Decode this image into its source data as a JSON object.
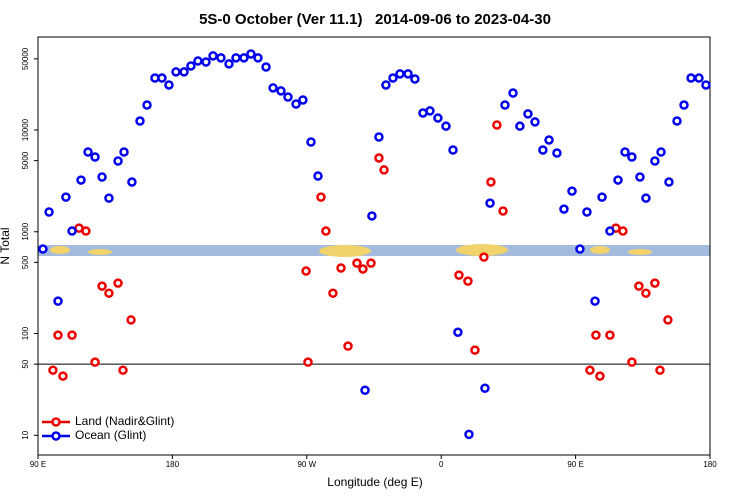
{
  "chart_data": {
    "type": "scatter",
    "title": "5S-0 October (Ver 11.1)   2014-09-06 to 2023-04-30",
    "x_label": "Longitude (deg E)",
    "y_label": "N Total",
    "xlim": [
      90,
      540
    ],
    "ylim": [
      6.4,
      82000
    ],
    "ylog": true,
    "grid": false,
    "legend": "bottom left",
    "reference_line": 50,
    "xticks": [
      {
        "value": 90,
        "label": "90 E"
      },
      180,
      {
        "value": 270,
        "label": "90 W"
      },
      {
        "value": 360,
        "label": "0"
      },
      {
        "value": 450,
        "label": "90 E"
      },
      {
        "value": 540,
        "label": "180"
      }
    ],
    "yticks": [
      10,
      50,
      100,
      500,
      1000,
      5000,
      10000,
      50000
    ],
    "series": [
      {
        "name": "Land (Nadir&Glint)",
        "color": "#ee0000",
        "x": [
          100.0,
          106.7,
          103.4,
          112.8,
          117.5,
          122.1,
          128.2,
          132.9,
          137.5,
          143.6,
          146.9,
          152.3,
          269.5,
          270.8,
          279.5,
          282.8,
          287.5,
          292.9,
          297.6,
          303.6,
          307.6,
          313.0,
          318.3,
          321.7,
          371.9,
          377.9,
          382.6,
          388.6,
          393.3,
          397.3,
          401.4,
          459.6,
          463.6,
          466.3,
          473.0,
          477.0,
          481.7,
          487.7,
          492.4,
          497.1,
          503.1,
          506.5,
          511.8
        ],
        "values": [
          43.6,
          38.1,
          96.4,
          96.4,
          1086,
          1016,
          52.3,
          292,
          249,
          313,
          43.6,
          136,
          411,
          52.3,
          2190,
          1016,
          249,
          440,
          75.2,
          492,
          430,
          492,
          5310,
          4050,
          375,
          327,
          68.7,
          564,
          3080,
          11200,
          1600,
          43.6,
          96.4,
          38.1,
          96.4,
          1086,
          1016,
          52.3,
          292,
          249,
          313,
          43.6,
          136
        ]
      },
      {
        "name": "Ocean (Glint)",
        "color": "#0000ee",
        "x": [
          93.3,
          97.4,
          103.4,
          108.7,
          112.8,
          118.8,
          123.5,
          128.2,
          132.9,
          137.5,
          143.6,
          147.6,
          152.9,
          158.3,
          163.0,
          168.3,
          173.0,
          177.7,
          182.4,
          187.8,
          192.4,
          197.1,
          202.5,
          207.2,
          212.5,
          217.9,
          222.6,
          227.9,
          232.6,
          237.3,
          242.7,
          247.4,
          252.7,
          257.4,
          262.8,
          267.4,
          272.8,
          277.5,
          309.0,
          313.6,
          318.3,
          323.0,
          327.7,
          332.4,
          337.8,
          342.4,
          347.8,
          352.5,
          357.8,
          363.2,
          367.9,
          371.2,
          378.6,
          389.3,
          392.7,
          402.7,
          408.1,
          412.7,
          418.1,
          422.8,
          428.1,
          432.2,
          437.5,
          442.2,
          447.6,
          452.9,
          457.6,
          463.0,
          467.7,
          473.0,
          478.4,
          483.1,
          487.7,
          493.1,
          497.1,
          503.1,
          507.2,
          512.5,
          517.9,
          522.6,
          527.3,
          532.6,
          537.3
        ],
        "values": [
          676,
          1563,
          208,
          2190,
          1016,
          3220,
          6080,
          5430,
          3450,
          2140,
          4960,
          6080,
          3080,
          12250,
          17600,
          32400,
          32400,
          27700,
          37200,
          37200,
          42600,
          47700,
          46600,
          53500,
          51100,
          44600,
          51100,
          51100,
          55800,
          51100,
          41600,
          25900,
          24200,
          21100,
          18000,
          19700,
          7620,
          3530,
          27.7,
          1430,
          8530,
          27700,
          32400,
          35600,
          35600,
          31700,
          14700,
          15400,
          13100,
          10900,
          6360,
          103,
          10.2,
          29.0,
          1910,
          17600,
          23100,
          10900,
          14400,
          12000,
          6360,
          7980,
          5940,
          1670,
          2510,
          676,
          1563,
          208,
          2190,
          1016,
          3220,
          6080,
          5430,
          3450,
          2140,
          4960,
          6080,
          3080,
          12250,
          17600,
          32400,
          32400,
          27700
        ]
      }
    ]
  }
}
